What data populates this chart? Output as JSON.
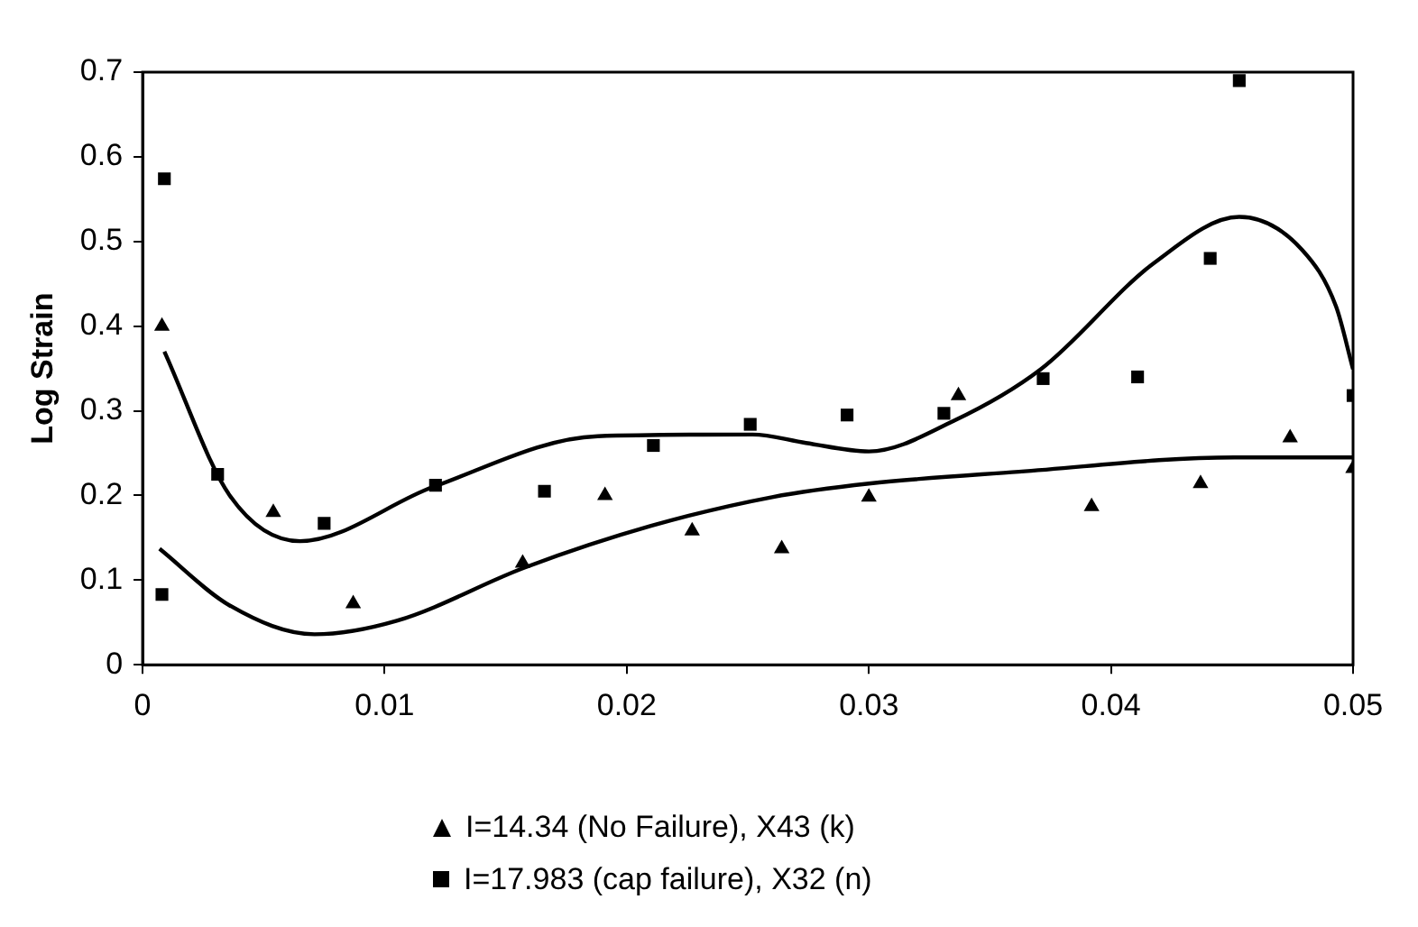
{
  "chart_data": {
    "type": "scatter",
    "ylabel": "Log Strain",
    "xlim": [
      0,
      0.05
    ],
    "xticks": [
      0,
      0.01,
      0.02,
      0.03,
      0.04,
      0.05
    ],
    "ylim": [
      0,
      0.7
    ],
    "yticks": [
      0,
      0.1,
      0.2,
      0.3,
      0.4,
      0.5,
      0.6,
      0.7
    ],
    "grid": false,
    "legend": "bottom",
    "series": [
      {
        "name": "I=14.34 (No Failure), X43 (k)",
        "color": "#000000",
        "marker": "triangle",
        "x": [
          0.0008,
          0.0054,
          0.0087,
          0.0157,
          0.0191,
          0.0227,
          0.0264,
          0.03,
          0.0337,
          0.0392,
          0.0437,
          0.0474,
          0.05
        ],
        "values": [
          0.4,
          0.18,
          0.072,
          0.12,
          0.2,
          0.158,
          0.137,
          0.198,
          0.318,
          0.187,
          0.214,
          0.268,
          0.232
        ]
      },
      {
        "name": "I=17.983 (cap failure), X32 (n)",
        "color": "#000000",
        "marker": "square",
        "x": [
          0.0009,
          0.0008,
          0.0031,
          0.0075,
          0.0121,
          0.0166,
          0.0211,
          0.0251,
          0.0291,
          0.0331,
          0.0372,
          0.0411,
          0.0441,
          0.0453,
          0.05
        ],
        "values": [
          0.574,
          0.083,
          0.225,
          0.167,
          0.212,
          0.205,
          0.259,
          0.284,
          0.295,
          0.297,
          0.338,
          0.34,
          0.48,
          0.69,
          0.318
        ]
      },
      {
        "type": "line",
        "color": "#000000",
        "marker": "none",
        "x": [
          0.0009,
          0.0036,
          0.0065,
          0.012,
          0.0188,
          0.0252,
          0.0274,
          0.03,
          0.0335,
          0.0371,
          0.0418,
          0.0453,
          0.0479,
          0.0493,
          0.05
        ],
        "values": [
          0.37,
          0.2,
          0.146,
          0.21,
          0.27,
          0.272,
          0.262,
          0.252,
          0.288,
          0.349,
          0.475,
          0.529,
          0.49,
          0.423,
          0.349
        ]
      },
      {
        "type": "line",
        "color": "#000000",
        "marker": "none",
        "x": [
          0.0007,
          0.0036,
          0.0071,
          0.0105,
          0.0158,
          0.021,
          0.026,
          0.03,
          0.0362,
          0.0451,
          0.05
        ],
        "values": [
          0.137,
          0.07,
          0.036,
          0.052,
          0.115,
          0.164,
          0.198,
          0.214,
          0.228,
          0.245,
          0.245
        ]
      }
    ]
  }
}
